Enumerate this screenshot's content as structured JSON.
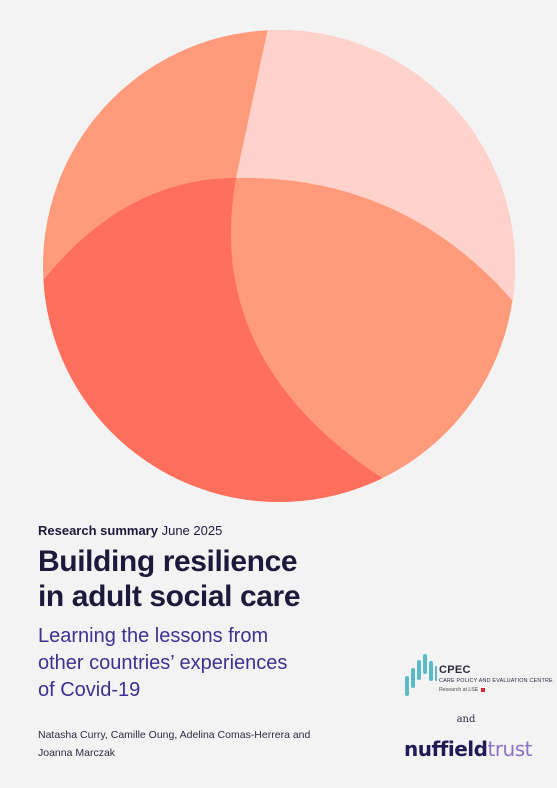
{
  "report": {
    "summary_label": "Research summary",
    "date": "June 2025",
    "title_lines": [
      "Building resilience",
      "in adult social care"
    ],
    "subtitle_lines": [
      "Learning the lessons from",
      "other countries’ experiences",
      "of Covid-19"
    ],
    "author_lines": [
      "Natasha Curry, Camille Oung, Adelina Comas-Herrera and",
      "Joanna Marczak"
    ]
  },
  "cpec": {
    "title": "CPEC",
    "subtitle": "CARE POLICY AND EVALUATION CENTRE",
    "research_line": "Research at LSE",
    "accent": "#5bbac4"
  },
  "connector": "and",
  "nuffield": {
    "part1": "nuffield",
    "part2": "trust",
    "color1": "#1f1b56",
    "color2": "#8c71c6"
  },
  "colors": {
    "background": "#f3f3f4",
    "title_text": "#1c1a3a",
    "subtitle_text": "#3c318f",
    "circle_light": "#ffd3cc",
    "circle_mid": "#ff9a7b",
    "circle_dark": "#ff6f5b"
  },
  "icons": {
    "cover": "overlapping-circles-illustration",
    "cpec_mark": "bar-graph-icon",
    "lse_mark": "red-square-icon"
  }
}
